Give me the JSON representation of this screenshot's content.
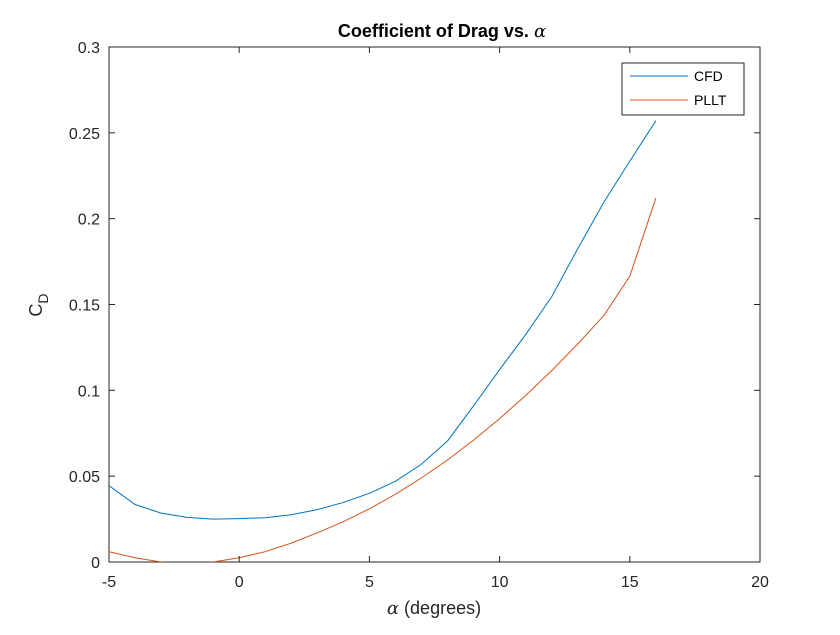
{
  "chart_data": {
    "type": "line",
    "title_text": "Coefficient of Drag vs. ",
    "title_symbol": "α",
    "xlabel_symbol": "α",
    "xlabel_text": " (degrees)",
    "ylabel_main": "C",
    "ylabel_sub": "D",
    "xlim": [
      -5,
      20
    ],
    "ylim": [
      0,
      0.3
    ],
    "xticks": [
      -5,
      0,
      5,
      10,
      15,
      20
    ],
    "yticks": [
      0,
      0.05,
      0.1,
      0.15,
      0.2,
      0.25,
      0.3
    ],
    "xtick_labels": [
      "-5",
      "0",
      "5",
      "10",
      "15",
      "20"
    ],
    "ytick_labels": [
      "0",
      "0.05",
      "0.1",
      "0.15",
      "0.2",
      "0.25",
      "0.3"
    ],
    "grid": false,
    "legend_position": "top-right",
    "series": [
      {
        "name": "CFD",
        "color": "#0072BD",
        "x": [
          -5,
          -4,
          -3,
          -2,
          -1,
          0,
          1,
          2,
          3,
          4,
          5,
          6,
          7,
          8,
          9,
          10,
          11,
          12,
          13,
          14,
          15,
          16
        ],
        "y": [
          0.0445,
          0.0335,
          0.0285,
          0.026,
          0.025,
          0.0253,
          0.0258,
          0.0275,
          0.0305,
          0.0347,
          0.04,
          0.047,
          0.057,
          0.0705,
          0.091,
          0.112,
          0.1325,
          0.1545,
          0.1825,
          0.2095,
          0.2335,
          0.257
        ]
      },
      {
        "name": "PLLT",
        "color": "#D95319",
        "x": [
          -5,
          -4,
          -3,
          -2,
          -1,
          0,
          1,
          2,
          3,
          4,
          5,
          6,
          7,
          8,
          9,
          10,
          11,
          12,
          13,
          14,
          15,
          16
        ],
        "y": [
          0.006,
          0.0025,
          0.0,
          -0.002,
          0.0,
          0.0025,
          0.006,
          0.011,
          0.017,
          0.0235,
          0.031,
          0.0395,
          0.049,
          0.0595,
          0.071,
          0.0835,
          0.097,
          0.1115,
          0.127,
          0.1435,
          0.1665,
          0.212
        ]
      }
    ]
  }
}
